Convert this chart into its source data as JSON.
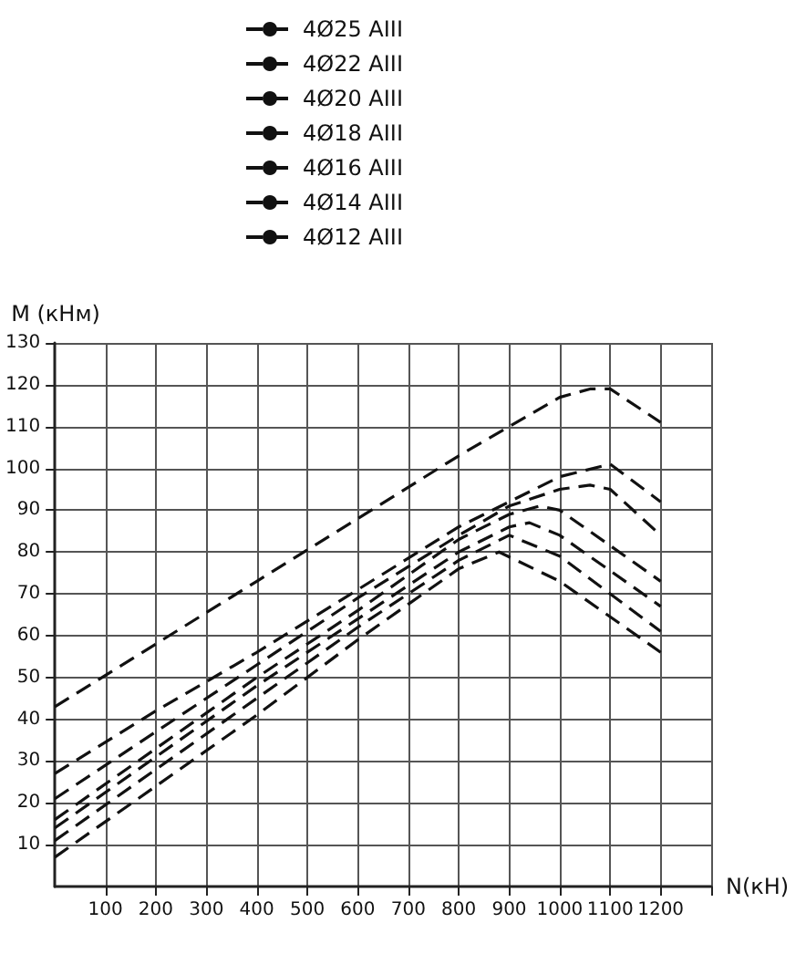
{
  "chart_data": {
    "type": "line",
    "xlabel": "N(кН)",
    "ylabel": "M (кНм)",
    "xlim": [
      0,
      1300
    ],
    "xticks": [
      100,
      200,
      300,
      400,
      500,
      600,
      700,
      800,
      900,
      1000,
      1100,
      1200,
      {
        "value": 1300,
        "label": null
      }
    ],
    "ylim": [
      0,
      130
    ],
    "yticks": [
      10,
      20,
      30,
      40,
      50,
      60,
      70,
      80,
      90,
      100,
      110,
      120,
      130
    ],
    "grid": true,
    "legend": "top",
    "marker": "none",
    "line_style": "dashed",
    "series": [
      {
        "name": "4Ø25 AIII",
        "color": "#111111",
        "x": [
          0,
          200,
          400,
          600,
          800,
          1000,
          1060,
          1100,
          1200
        ],
        "values": [
          43,
          58,
          73,
          88,
          103,
          117,
          119,
          119,
          111
        ]
      },
      {
        "name": "4Ø22 AIII",
        "color": "#111111",
        "x": [
          0,
          200,
          400,
          600,
          800,
          1000,
          1100,
          1200
        ],
        "values": [
          27,
          42,
          56,
          71,
          86,
          98,
          101,
          92
        ]
      },
      {
        "name": "4Ø20 AIII",
        "color": "#111111",
        "x": [
          0,
          200,
          400,
          600,
          800,
          900,
          1000,
          1060,
          1100,
          1200
        ],
        "values": [
          21,
          37,
          53,
          69,
          84,
          91,
          95,
          96,
          95,
          84
        ]
      },
      {
        "name": "4Ø18 AIII",
        "color": "#111111",
        "x": [
          0,
          200,
          400,
          600,
          800,
          900,
          960,
          1000,
          1200
        ],
        "values": [
          16,
          33,
          50,
          66,
          83,
          89,
          91,
          90,
          73
        ]
      },
      {
        "name": "4Ø16 AIII",
        "color": "#111111",
        "x": [
          0,
          200,
          400,
          600,
          800,
          900,
          940,
          1000,
          1200
        ],
        "values": [
          14,
          31,
          48,
          64,
          80,
          86,
          87,
          84,
          67
        ]
      },
      {
        "name": "4Ø14 AIII",
        "color": "#111111",
        "x": [
          0,
          200,
          400,
          600,
          800,
          900,
          1000,
          1200
        ],
        "values": [
          11,
          28,
          45,
          62,
          78,
          84,
          79,
          61
        ]
      },
      {
        "name": "4Ø12 AIII",
        "color": "#111111",
        "x": [
          0,
          200,
          400,
          600,
          800,
          880,
          1000,
          1200
        ],
        "values": [
          7,
          24,
          41,
          59,
          76,
          80,
          73,
          56
        ]
      }
    ]
  }
}
